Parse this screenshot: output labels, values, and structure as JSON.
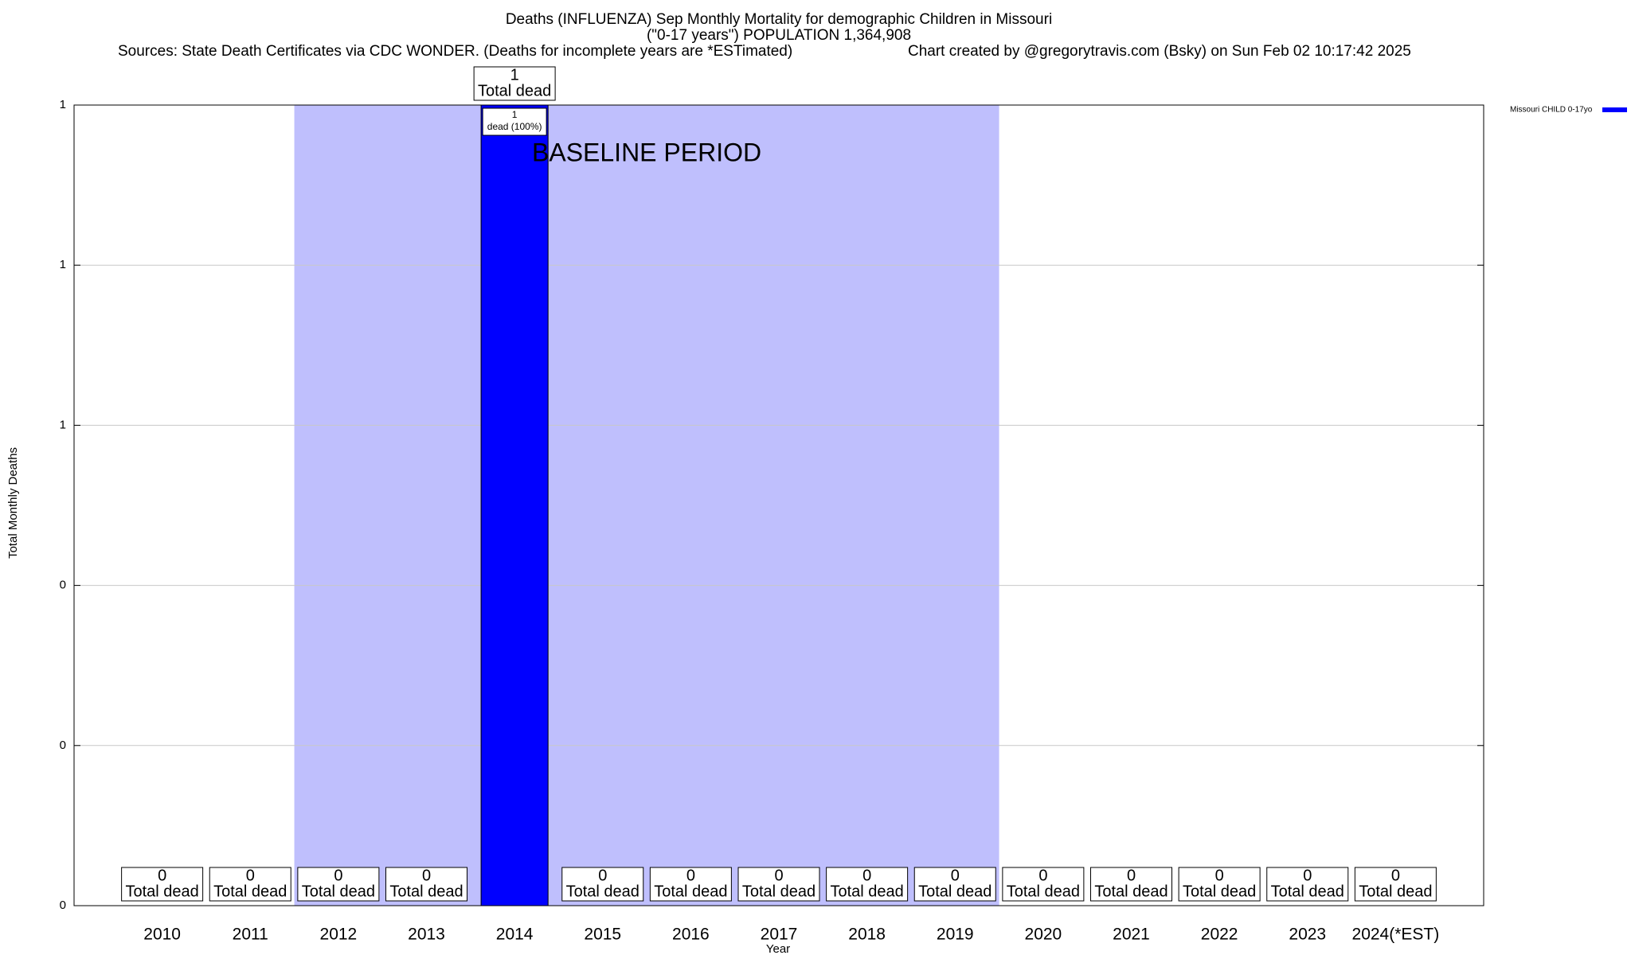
{
  "chart_data": {
    "type": "bar",
    "title": "Deaths (INFLUENZA) Sep Monthly Mortality for demographic Children in Missouri",
    "subtitle": "(\"0-17 years\") POPULATION 1,364,908",
    "source": "Sources: State Death Certificates via CDC WONDER. (Deaths for incomplete years are *ESTimated)",
    "credit": "Chart created by @gregorytravis.com (Bsky) on Sun Feb 02 10:17:42 2025",
    "x_label": "Year",
    "y_label": "Total Monthly Deaths",
    "categories": [
      "2010",
      "2011",
      "2012",
      "2013",
      "2014",
      "2015",
      "2016",
      "2017",
      "2018",
      "2019",
      "2020",
      "2021",
      "2022",
      "2023",
      "2024(*EST)"
    ],
    "series": [
      {
        "name": "Missouri CHILD 0-17yo",
        "color": "#0000ff",
        "values": [
          0,
          0,
          0,
          0,
          1,
          0,
          0,
          0,
          0,
          0,
          0,
          0,
          0,
          0,
          0
        ]
      }
    ],
    "label_text": "Total dead",
    "inner_label": "dead (100%)",
    "baseline": {
      "text": "BASELINE PERIOD",
      "from": "2012",
      "to": "2019",
      "color": "#bfbffd"
    },
    "ylim": [
      0,
      1
    ],
    "yticks": [
      0,
      {
        "value": 0.2,
        "label": "0"
      },
      {
        "value": 0.4,
        "label": "0"
      },
      {
        "value": 0.6,
        "label": "1"
      },
      {
        "value": 0.8,
        "label": "1"
      },
      1
    ],
    "grid": true,
    "legend": "right"
  }
}
